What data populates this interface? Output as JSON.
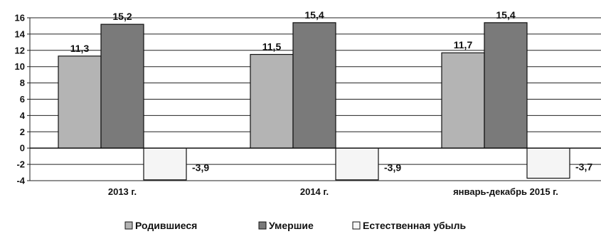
{
  "chart_data": {
    "type": "bar",
    "title": "",
    "xlabel": "",
    "ylabel": "",
    "categories": [
      "2013 г.",
      "2014 г.",
      "январь-декабрь 2015 г."
    ],
    "series": [
      {
        "name": "Родившиеся",
        "values": [
          11.3,
          11.5,
          11.7
        ],
        "labels": [
          "11,3",
          "11,5",
          "11,7"
        ],
        "color": "#b4b4b4"
      },
      {
        "name": "Умершие",
        "values": [
          15.2,
          15.4,
          15.4
        ],
        "labels": [
          "15,2",
          "15,4",
          "15,4"
        ],
        "color": "#7a7a7a"
      },
      {
        "name": "Естественная убыль",
        "values": [
          -3.9,
          -3.9,
          -3.7
        ],
        "labels": [
          "-3,9",
          "-3,9",
          "-3,7"
        ],
        "color": "#f5f5f5"
      }
    ],
    "ylim": [
      -4,
      16
    ],
    "yticks": [
      -4,
      -2,
      0,
      2,
      4,
      6,
      8,
      10,
      12,
      14,
      16
    ],
    "ytick_labels": [
      "-4",
      "-2",
      "0",
      "2",
      "4",
      "6",
      "8",
      "10",
      "12",
      "14",
      "16"
    ],
    "grid": true,
    "legend_position": "bottom"
  }
}
